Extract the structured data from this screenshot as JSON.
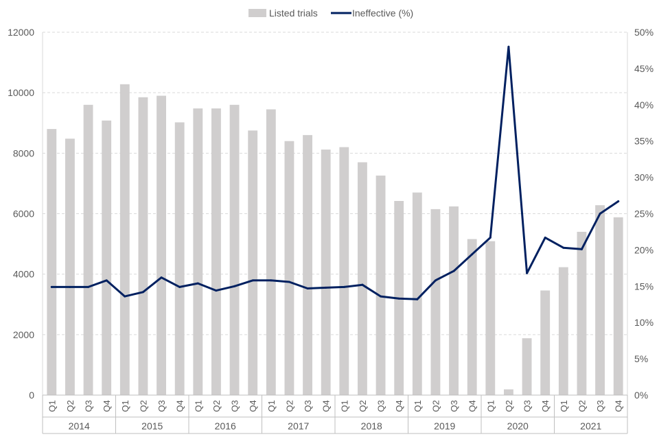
{
  "chart_data": {
    "type": "bar",
    "title": "",
    "xlabel": "",
    "ylabel": "",
    "categories": [
      "Q1",
      "Q2",
      "Q3",
      "Q4",
      "Q1",
      "Q2",
      "Q3",
      "Q4",
      "Q1",
      "Q2",
      "Q3",
      "Q4",
      "Q1",
      "Q2",
      "Q3",
      "Q4",
      "Q1",
      "Q2",
      "Q3",
      "Q4",
      "Q1",
      "Q2",
      "Q3",
      "Q4",
      "Q1",
      "Q2",
      "Q3",
      "Q4",
      "Q1",
      "Q2",
      "Q3",
      "Q4"
    ],
    "year_groups": [
      "2014",
      "2015",
      "2016",
      "2017",
      "2018",
      "2019",
      "2020",
      "2021"
    ],
    "series": [
      {
        "name": "Listed trials",
        "type": "bar",
        "axis": "left",
        "color": "#d0cece",
        "values": [
          8800,
          8480,
          9600,
          9080,
          10280,
          9850,
          9900,
          9020,
          9480,
          9480,
          9600,
          8750,
          9450,
          8400,
          8600,
          8120,
          8200,
          7700,
          7260,
          6420,
          6700,
          6150,
          6240,
          5160,
          5090,
          190,
          1880,
          3460,
          4230,
          5400,
          6280,
          5880
        ]
      },
      {
        "name": "Ineffective (%)",
        "type": "line",
        "axis": "right",
        "color": "#002060",
        "values": [
          14.9,
          14.9,
          14.9,
          15.8,
          13.6,
          14.2,
          16.2,
          14.9,
          15.4,
          14.4,
          15.0,
          15.8,
          15.8,
          15.6,
          14.7,
          14.8,
          14.9,
          15.2,
          13.6,
          13.3,
          13.2,
          15.8,
          17.1,
          19.4,
          21.7,
          48.0,
          16.8,
          21.7,
          20.3,
          20.1,
          25.0,
          26.7
        ]
      }
    ],
    "left_axis": {
      "ylim": [
        0,
        12000
      ],
      "ticks": [
        "0",
        "2000",
        "4000",
        "6000",
        "8000",
        "10000",
        "12000"
      ]
    },
    "right_axis": {
      "ylim": [
        0,
        50
      ],
      "ticks": [
        "0%",
        "5%",
        "10%",
        "15%",
        "20%",
        "25%",
        "30%",
        "35%",
        "40%",
        "45%",
        "50%"
      ]
    },
    "grid": true,
    "legend": {
      "position": "top",
      "items": [
        "Listed trials",
        "Ineffective (%)"
      ]
    }
  }
}
